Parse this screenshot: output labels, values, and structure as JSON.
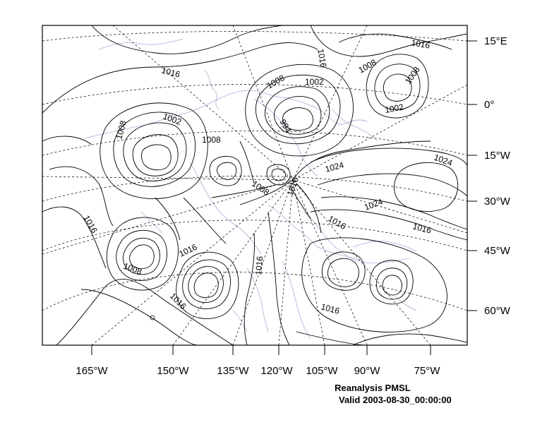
{
  "map": {
    "title": "Reanalysis PMSL",
    "valid_time": "Valid 2003-08-30_00:00:00",
    "bottom_labels": [
      "165°W",
      "150°W",
      "135°W",
      "120°W",
      "105°W",
      "90°W",
      "75°W"
    ],
    "right_labels": [
      "15°E",
      "0°",
      "15°W",
      "30°W",
      "45°W",
      "60°W"
    ],
    "contour_labels": [
      "1016",
      "1016",
      "1016",
      "1008",
      "1002",
      "1008",
      "1002",
      "1008",
      "1008",
      "1002",
      "994",
      "1008",
      "1008",
      "1016",
      "1024",
      "1024",
      "1024",
      "1016",
      "1016",
      "1016",
      "1016",
      "1008",
      "1016",
      "1016",
      "1016"
    ],
    "colors": {
      "contour": "#000000",
      "coastline": "#b7a6d6",
      "grid": "#000000",
      "frame": "#000000"
    }
  }
}
